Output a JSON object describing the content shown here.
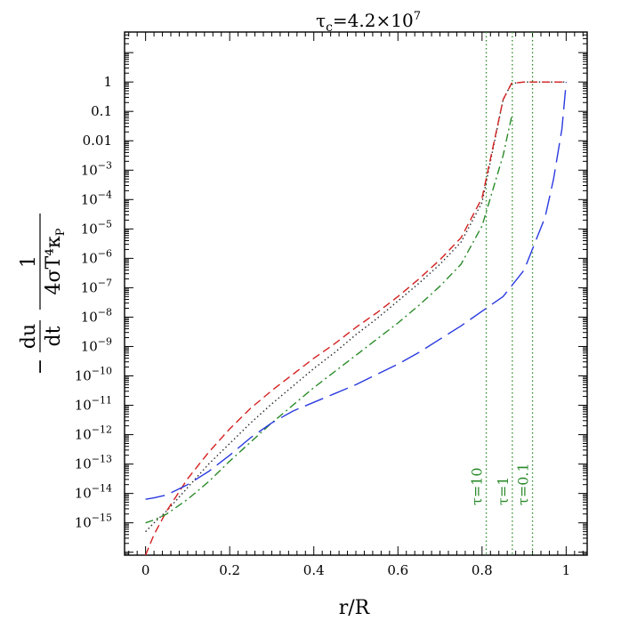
{
  "chart_data": {
    "type": "line",
    "title": "τ_c=4.2×10^7",
    "title_parts": {
      "symbol": "τ",
      "subscript": "c",
      "text": "=4.2×10",
      "exponent": "7"
    },
    "xlabel": "r/R",
    "ylabel_parts": {
      "minus": "−",
      "frac1_num": "du",
      "frac1_den": "dt",
      "frac2_num": "1",
      "frac2_den": "4σT⁴κ",
      "frac2_den_sub": "P"
    },
    "xlim": [
      -0.05,
      1.05
    ],
    "ylim_log10": [
      -16.1,
      1.7
    ],
    "y_scale": "log",
    "x_ticks": [
      {
        "value": 0,
        "label": "0"
      },
      {
        "value": 0.2,
        "label": "0.2"
      },
      {
        "value": 0.4,
        "label": "0.4"
      },
      {
        "value": 0.6,
        "label": "0.6"
      },
      {
        "value": 0.8,
        "label": "0.8"
      },
      {
        "value": 1,
        "label": "1"
      }
    ],
    "y_ticks": [
      {
        "exp": 0,
        "label": "1",
        "sup": ""
      },
      {
        "exp": -1,
        "label": "0.1",
        "sup": ""
      },
      {
        "exp": -2,
        "label": "0.01",
        "sup": ""
      },
      {
        "exp": -3,
        "label": "10",
        "sup": "−3"
      },
      {
        "exp": -4,
        "label": "10",
        "sup": "−4"
      },
      {
        "exp": -5,
        "label": "10",
        "sup": "−5"
      },
      {
        "exp": -6,
        "label": "10",
        "sup": "−6"
      },
      {
        "exp": -7,
        "label": "10",
        "sup": "−7"
      },
      {
        "exp": -8,
        "label": "10",
        "sup": "−8"
      },
      {
        "exp": -9,
        "label": "10",
        "sup": "−9"
      },
      {
        "exp": -10,
        "label": "10",
        "sup": "−10"
      },
      {
        "exp": -11,
        "label": "10",
        "sup": "−11"
      },
      {
        "exp": -12,
        "label": "10",
        "sup": "−12"
      },
      {
        "exp": -13,
        "label": "10",
        "sup": "−13"
      },
      {
        "exp": -14,
        "label": "10",
        "sup": "−14"
      },
      {
        "exp": -15,
        "label": "10",
        "sup": "−15"
      }
    ],
    "series": [
      {
        "color": "#2a2a2a",
        "dash": "dotted",
        "x": [
          0.0,
          0.02,
          0.05,
          0.1,
          0.15,
          0.2,
          0.25,
          0.3,
          0.35,
          0.4,
          0.45,
          0.5,
          0.55,
          0.6,
          0.65,
          0.7,
          0.75,
          0.8,
          0.85,
          0.87,
          0.9,
          0.95,
          1.0
        ],
        "log10y": [
          -15.3,
          -15.0,
          -14.6,
          -13.8,
          -13.0,
          -12.3,
          -11.6,
          -10.95,
          -10.35,
          -9.75,
          -9.2,
          -8.6,
          -8.05,
          -7.45,
          -6.85,
          -6.2,
          -5.45,
          -4.1,
          -0.6,
          -0.05,
          0.0,
          0.0,
          0.0
        ]
      },
      {
        "color": "#d42020",
        "dash": "short-dash",
        "x": [
          0.0,
          0.02,
          0.05,
          0.1,
          0.15,
          0.2,
          0.25,
          0.3,
          0.35,
          0.4,
          0.45,
          0.5,
          0.55,
          0.6,
          0.65,
          0.7,
          0.75,
          0.8,
          0.85,
          0.87,
          0.9,
          0.95,
          1.0
        ],
        "log10y": [
          -16.1,
          -15.4,
          -14.6,
          -13.5,
          -12.6,
          -11.8,
          -11.1,
          -10.5,
          -9.95,
          -9.4,
          -8.9,
          -8.35,
          -7.85,
          -7.3,
          -6.7,
          -6.05,
          -5.3,
          -3.95,
          -0.6,
          -0.05,
          0.0,
          0.0,
          0.0
        ]
      },
      {
        "color": "#2a8a2a",
        "dash": "dash-dot",
        "x": [
          0.0,
          0.02,
          0.05,
          0.1,
          0.15,
          0.2,
          0.25,
          0.3,
          0.35,
          0.4,
          0.45,
          0.5,
          0.55,
          0.6,
          0.65,
          0.7,
          0.75,
          0.8,
          0.85,
          0.87
        ],
        "log10y": [
          -15.0,
          -14.9,
          -14.7,
          -14.2,
          -13.6,
          -12.9,
          -12.25,
          -11.6,
          -11.0,
          -10.4,
          -9.85,
          -9.3,
          -8.75,
          -8.2,
          -7.6,
          -6.95,
          -6.2,
          -4.9,
          -2.5,
          -1.2
        ]
      },
      {
        "color": "#2a3adf",
        "dash": "long-dash",
        "x": [
          0.0,
          0.02,
          0.05,
          0.1,
          0.15,
          0.2,
          0.25,
          0.3,
          0.35,
          0.4,
          0.45,
          0.5,
          0.55,
          0.6,
          0.65,
          0.7,
          0.75,
          0.8,
          0.85,
          0.9,
          0.95,
          0.97,
          0.99,
          1.0
        ],
        "log10y": [
          -14.2,
          -14.15,
          -14.05,
          -13.7,
          -13.25,
          -12.7,
          -12.1,
          -11.6,
          -11.2,
          -10.9,
          -10.6,
          -10.3,
          -9.95,
          -9.6,
          -9.2,
          -8.75,
          -8.3,
          -7.8,
          -7.3,
          -6.4,
          -4.6,
          -3.3,
          -1.6,
          0.0
        ]
      }
    ],
    "vlines": [
      {
        "x": 0.81,
        "label": "τ=10",
        "color": "#2a8a2a"
      },
      {
        "x": 0.872,
        "label": "τ=1",
        "color": "#2a8a2a"
      },
      {
        "x": 0.92,
        "label": "τ=0.1",
        "color": "#2a8a2a"
      }
    ],
    "grid": false
  }
}
